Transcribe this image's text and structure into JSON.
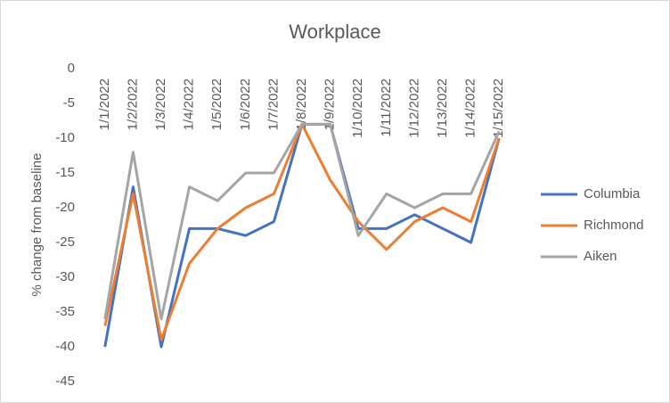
{
  "chart_data": {
    "type": "line",
    "title": "Workplace",
    "y_label": "% change from baseline",
    "categories": [
      "1/1/2022",
      "1/2/2022",
      "1/3/2022",
      "1/4/2022",
      "1/5/2022",
      "1/6/2022",
      "1/7/2022",
      "1/8/2022",
      "1/9/2022",
      "1/10/2022",
      "1/11/2022",
      "1/12/2022",
      "1/13/2022",
      "1/14/2022",
      "1/15/2022"
    ],
    "series": [
      {
        "name": "Columbia",
        "color": "#4472c4",
        "values": [
          -40,
          -17,
          -40,
          -23,
          -23,
          -24,
          -22,
          -8,
          -8,
          -23,
          -23,
          -21,
          -23,
          -25,
          -10
        ]
      },
      {
        "name": "Richmond",
        "color": "#ed7d31",
        "values": [
          -37,
          -18,
          -39,
          -28,
          -23,
          -20,
          -18,
          -8,
          -16,
          -22,
          -26,
          -22,
          -20,
          -22,
          -10
        ]
      },
      {
        "name": "Aiken",
        "color": "#a5a5a5",
        "values": [
          -36,
          -12,
          -36,
          -17,
          -19,
          -15,
          -15,
          -8,
          -8,
          -24,
          -18,
          -20,
          -18,
          -18,
          -9
        ]
      }
    ],
    "ylim": [
      -45,
      0
    ],
    "yticks": [
      0,
      -5,
      -10,
      -15,
      -20,
      -25,
      -30,
      -35,
      -40,
      -45
    ],
    "grid": false,
    "legend": "right"
  }
}
